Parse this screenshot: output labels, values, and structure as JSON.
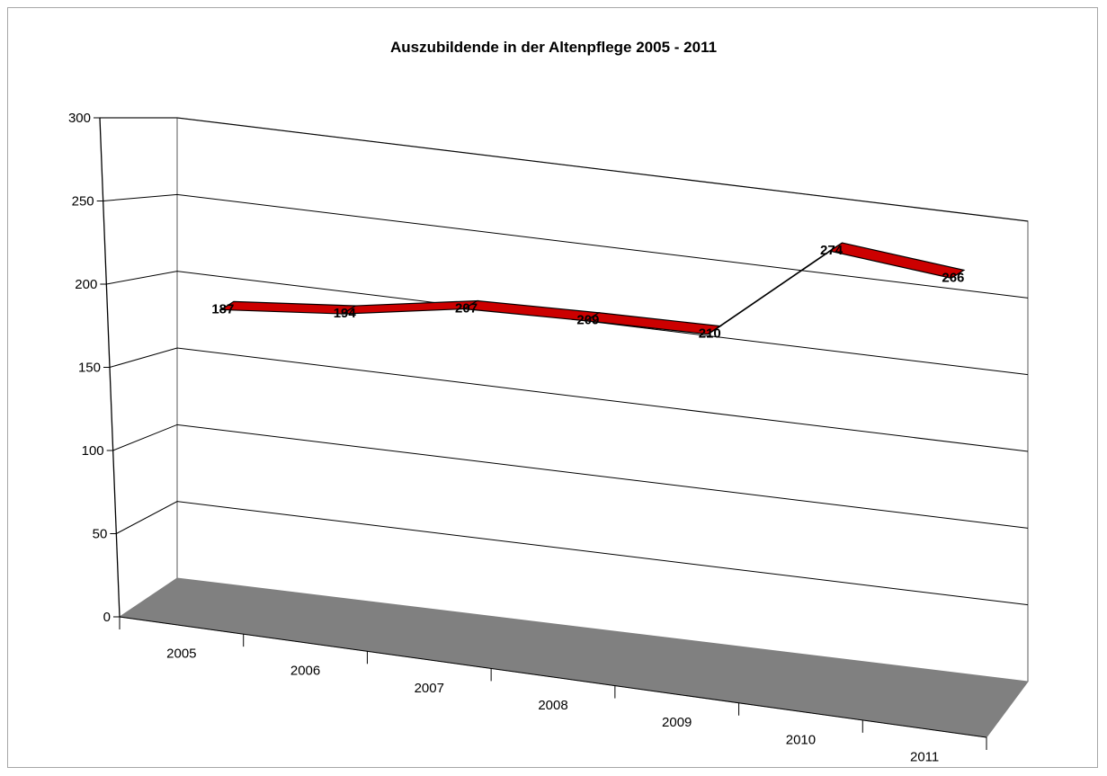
{
  "chart_data": {
    "type": "line",
    "title": "Auszubildende in der Altenpflege 2005 - 2011",
    "categories": [
      "2005",
      "2006",
      "2007",
      "2008",
      "2009",
      "2010",
      "2011"
    ],
    "values": [
      187,
      194,
      207,
      209,
      210,
      274,
      266
    ],
    "ylim": [
      0,
      300
    ],
    "yticks": [
      0,
      50,
      100,
      150,
      200,
      250,
      300
    ],
    "grid": true,
    "legend": "none",
    "colors": {
      "ribbon": "#cc0000",
      "floor": "#808080",
      "grid": "#000000",
      "axis": "#808080"
    }
  }
}
